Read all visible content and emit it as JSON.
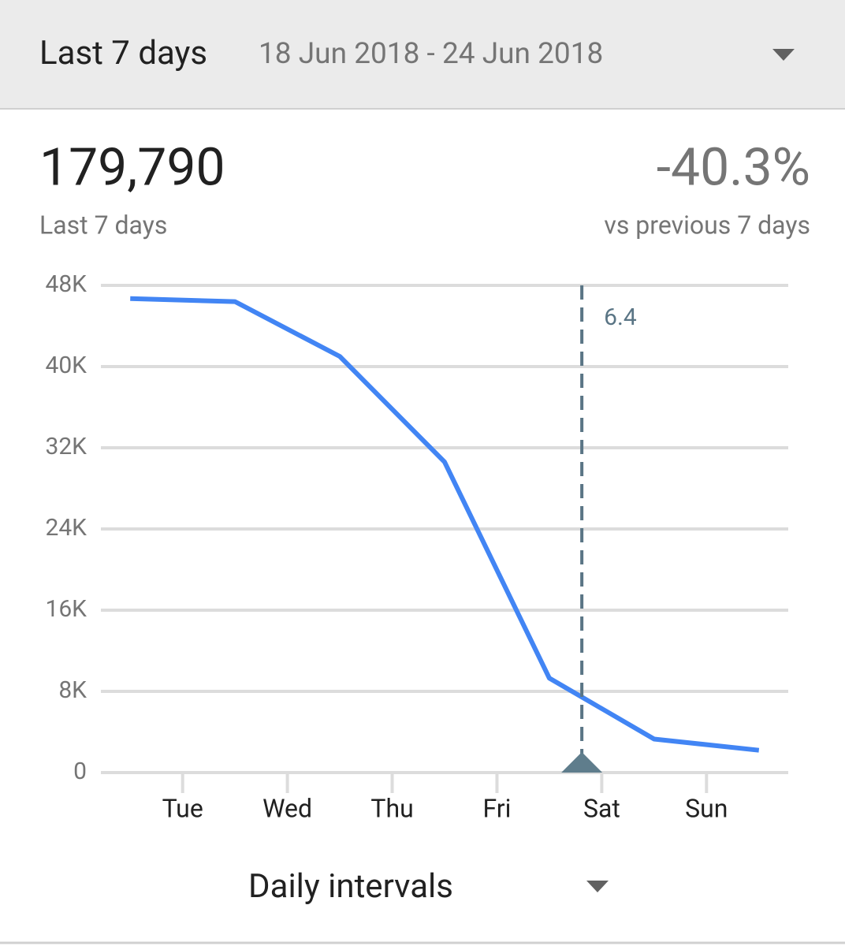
{
  "header": {
    "title": "Last 7 days",
    "date_range": "18 Jun 2018 - 24 Jun 2018"
  },
  "summary": {
    "total": "179,790",
    "total_label": "Last 7 days",
    "change": "-40.3%",
    "change_label": "vs previous 7 days"
  },
  "chart_data": {
    "type": "line",
    "color": "#4285f4",
    "x": [
      0.5,
      1.5,
      2.5,
      3.5,
      4.5,
      5.5,
      6.5
    ],
    "values": [
      46700,
      46400,
      41000,
      30600,
      9300,
      3300,
      2200
    ],
    "xlim": [
      0.22,
      6.78
    ],
    "xticks": [
      {
        "value": 1,
        "label": "Tue"
      },
      {
        "value": 2,
        "label": "Wed"
      },
      {
        "value": 3,
        "label": "Thu"
      },
      {
        "value": 4,
        "label": "Fri"
      },
      {
        "value": 5,
        "label": "Sat"
      },
      {
        "value": 6,
        "label": "Sun"
      }
    ],
    "ylim": [
      0,
      48000
    ],
    "yticks": [
      {
        "value": 0,
        "label": "0"
      },
      {
        "value": 8000,
        "label": "8K"
      },
      {
        "value": 16000,
        "label": "16K"
      },
      {
        "value": 24000,
        "label": "24K"
      },
      {
        "value": 32000,
        "label": "32K"
      },
      {
        "value": 40000,
        "label": "40K"
      },
      {
        "value": 48000,
        "label": "48K"
      }
    ],
    "grid": true,
    "cursor": {
      "x": 4.81,
      "label": "6.4"
    }
  },
  "footer": {
    "interval": "Daily intervals"
  }
}
